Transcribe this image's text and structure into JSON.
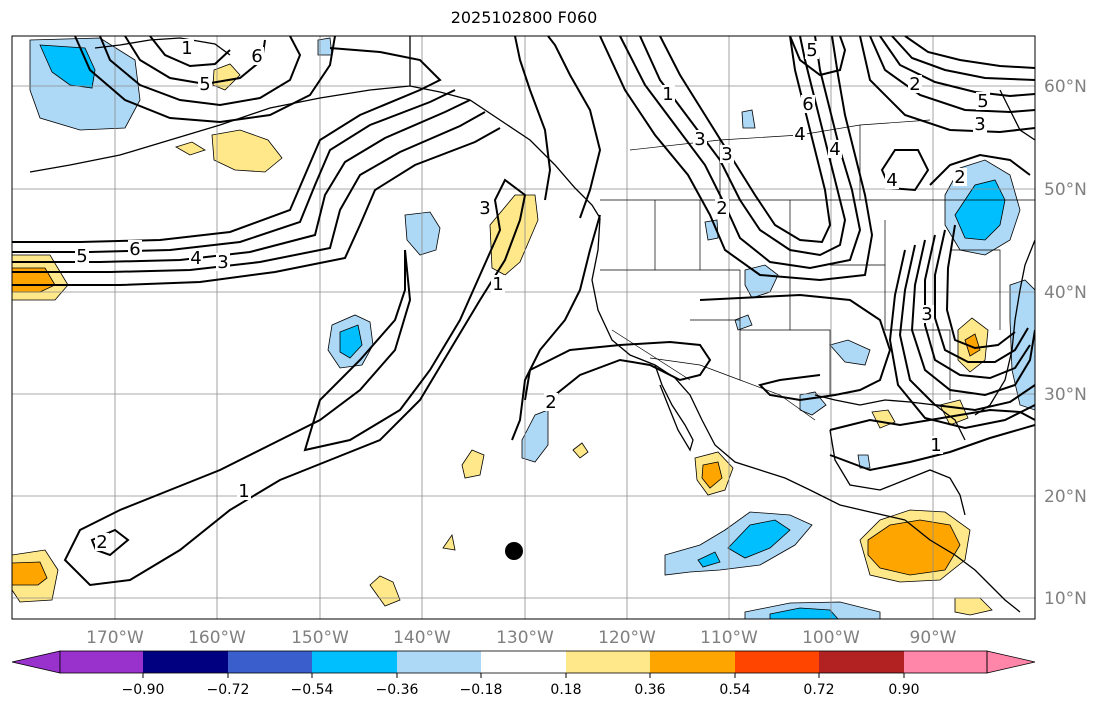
{
  "title": "2025102800 F060",
  "lon_labels": [
    "170°W",
    "160°W",
    "150°W",
    "140°W",
    "130°W",
    "120°W",
    "110°W",
    "100°W",
    "90°W"
  ],
  "lat_labels": [
    "60°N",
    "50°N",
    "40°N",
    "30°N",
    "20°N",
    "10°N"
  ],
  "contour_labels": [
    "5",
    "6",
    "4",
    "3",
    "2",
    "1",
    "2",
    "1",
    "3",
    "5",
    "1",
    "6",
    "4",
    "3",
    "3",
    "2",
    "1",
    "5",
    "3",
    "4",
    "6",
    "4",
    "5",
    "2",
    "3",
    "2",
    "1"
  ],
  "colorbar": {
    "labels": [
      "−0.90",
      "−0.72",
      "−0.54",
      "−0.36",
      "−0.18",
      "0.18",
      "0.36",
      "0.54",
      "0.72",
      "0.90"
    ],
    "colors": [
      "#9932cc",
      "#000080",
      "#3a5fcd",
      "#00bfff",
      "#add8f6",
      "#ffffff",
      "#ffe88a",
      "#ffa500",
      "#ff4500",
      "#b22222",
      "#ff85a9"
    ]
  },
  "colors": {
    "light_blue": "#add8f6",
    "blue": "#00bfff",
    "light_yellow": "#ffe88a",
    "orange": "#ffa500",
    "grid": "#8c8c8c",
    "axis_label": "#808080"
  }
}
